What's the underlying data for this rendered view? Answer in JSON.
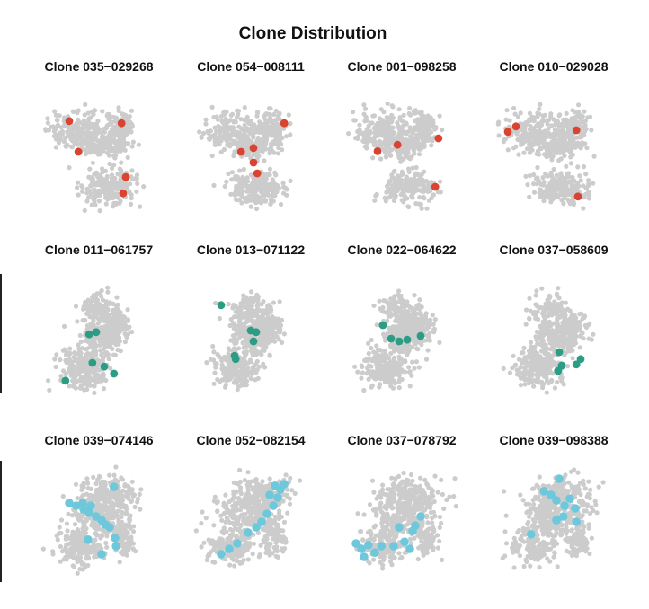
{
  "chart_data": {
    "type": "scatter",
    "title": "Clone Distribution",
    "background_color": "#cccccc",
    "panels": [
      {
        "title": "Clone 035−029268",
        "shape": "A",
        "color": "#d9432f",
        "points": [
          [
            -0.55,
            0.62
          ],
          [
            0.42,
            0.58
          ],
          [
            -0.38,
            0.05
          ],
          [
            0.5,
            -0.42
          ],
          [
            0.45,
            -0.72
          ]
        ]
      },
      {
        "title": "Clone 054−008111",
        "shape": "A",
        "color": "#d9432f",
        "points": [
          [
            0.62,
            0.58
          ],
          [
            0.05,
            0.12
          ],
          [
            -0.18,
            0.05
          ],
          [
            0.05,
            -0.15
          ],
          [
            0.12,
            -0.35
          ]
        ]
      },
      {
        "title": "Clone 001−098258",
        "shape": "A",
        "color": "#d9432f",
        "points": [
          [
            0.68,
            0.3
          ],
          [
            -0.08,
            0.18
          ],
          [
            -0.45,
            0.06
          ],
          [
            0.62,
            -0.6
          ]
        ]
      },
      {
        "title": "Clone 010−029028",
        "shape": "A",
        "color": "#d9432f",
        "points": [
          [
            -0.85,
            0.42
          ],
          [
            -0.7,
            0.52
          ],
          [
            0.42,
            0.45
          ],
          [
            0.45,
            -0.78
          ]
        ]
      },
      {
        "title": "Clone 011−061757",
        "shape": "B",
        "color": "#2a9d84",
        "points": [
          [
            -0.18,
            0.08
          ],
          [
            -0.05,
            0.12
          ],
          [
            -0.12,
            -0.45
          ],
          [
            0.1,
            -0.52
          ],
          [
            0.28,
            -0.65
          ],
          [
            -0.62,
            -0.78
          ]
        ]
      },
      {
        "title": "Clone 013−071122",
        "shape": "B",
        "color": "#2a9d84",
        "points": [
          [
            -0.55,
            0.62
          ],
          [
            0.0,
            0.15
          ],
          [
            0.1,
            0.12
          ],
          [
            0.05,
            -0.05
          ],
          [
            -0.3,
            -0.32
          ],
          [
            -0.28,
            -0.38
          ]
        ]
      },
      {
        "title": "Clone 022−064622",
        "shape": "B",
        "color": "#2a9d84",
        "points": [
          [
            -0.35,
            0.25
          ],
          [
            -0.2,
            0.0
          ],
          [
            -0.05,
            -0.05
          ],
          [
            0.1,
            -0.02
          ],
          [
            0.35,
            0.05
          ]
        ]
      },
      {
        "title": "Clone 037−058609",
        "shape": "B",
        "color": "#2a9d84",
        "points": [
          [
            0.1,
            -0.25
          ],
          [
            0.5,
            -0.38
          ],
          [
            0.42,
            -0.48
          ],
          [
            0.15,
            -0.5
          ],
          [
            0.08,
            -0.6
          ]
        ]
      },
      {
        "title": "Clone 039−074146",
        "shape": "C",
        "color": "#6ec8dc",
        "cluster": "W",
        "points": [
          [
            -0.55,
            0.3
          ],
          [
            -0.42,
            0.25
          ],
          [
            -0.28,
            0.18
          ],
          [
            -0.18,
            0.12
          ],
          [
            -0.05,
            0.05
          ],
          [
            0.05,
            -0.02
          ],
          [
            0.12,
            -0.1
          ],
          [
            0.2,
            -0.15
          ],
          [
            -0.3,
            0.3
          ],
          [
            -0.15,
            0.25
          ],
          [
            0.28,
            0.6
          ],
          [
            0.3,
            -0.35
          ],
          [
            0.32,
            -0.5
          ],
          [
            -0.2,
            -0.38
          ],
          [
            0.05,
            -0.65
          ]
        ]
      },
      {
        "title": "Clone 052−082154",
        "shape": "C",
        "color": "#6ec8dc",
        "cluster": "NE",
        "points": [
          [
            0.45,
            0.62
          ],
          [
            0.55,
            0.55
          ],
          [
            0.62,
            0.65
          ],
          [
            0.35,
            0.45
          ],
          [
            0.5,
            0.4
          ],
          [
            0.42,
            0.25
          ],
          [
            0.3,
            0.1
          ],
          [
            0.2,
            -0.05
          ],
          [
            0.1,
            -0.15
          ],
          [
            -0.05,
            -0.25
          ],
          [
            -0.25,
            -0.45
          ],
          [
            -0.4,
            -0.55
          ],
          [
            -0.55,
            -0.65
          ]
        ]
      },
      {
        "title": "Clone 037−078792",
        "shape": "C",
        "color": "#6ec8dc",
        "cluster": "SW",
        "points": [
          [
            -0.85,
            -0.45
          ],
          [
            -0.75,
            -0.55
          ],
          [
            -0.62,
            -0.48
          ],
          [
            -0.5,
            -0.62
          ],
          [
            -0.7,
            -0.7
          ],
          [
            -0.38,
            -0.5
          ],
          [
            -0.15,
            -0.5
          ],
          [
            0.05,
            -0.42
          ],
          [
            0.15,
            -0.55
          ],
          [
            0.2,
            -0.22
          ],
          [
            0.25,
            -0.12
          ],
          [
            0.35,
            0.05
          ],
          [
            -0.05,
            -0.15
          ]
        ]
      },
      {
        "title": "Clone 039−098388",
        "shape": "C",
        "color": "#6ec8dc",
        "cluster": "N",
        "points": [
          [
            0.1,
            0.75
          ],
          [
            -0.18,
            0.52
          ],
          [
            -0.05,
            0.45
          ],
          [
            0.05,
            0.35
          ],
          [
            0.2,
            0.25
          ],
          [
            0.3,
            0.38
          ],
          [
            0.4,
            0.2
          ],
          [
            0.18,
            0.05
          ],
          [
            0.42,
            -0.05
          ],
          [
            0.05,
            -0.02
          ],
          [
            -0.42,
            -0.28
          ]
        ]
      }
    ]
  }
}
